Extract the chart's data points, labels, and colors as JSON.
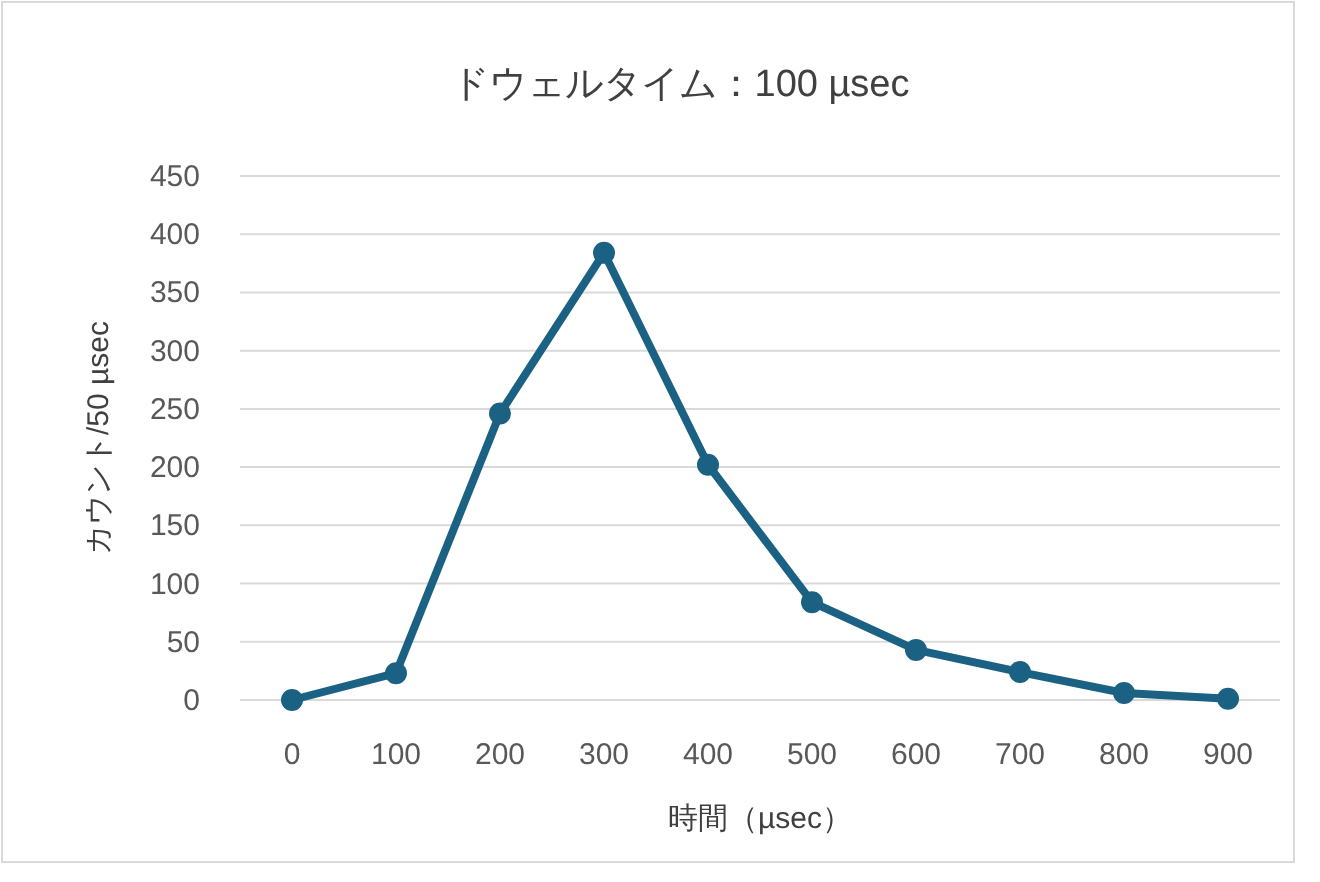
{
  "chart_data": {
    "type": "line",
    "title": "ドウェルタイム：100 µsec",
    "xlabel": "時間（µsec）",
    "ylabel": "カウント/50 µsec",
    "categories": [
      "0",
      "100",
      "200",
      "300",
      "400",
      "500",
      "600",
      "700",
      "800",
      "900"
    ],
    "series": [
      {
        "color": "#1b6184",
        "values": [
          0,
          23,
          246,
          384,
          202,
          84,
          43,
          24,
          6,
          1
        ]
      }
    ],
    "ylim": [
      0,
      450
    ],
    "yticks": [
      0,
      50,
      100,
      150,
      200,
      250,
      300,
      350,
      400,
      450
    ],
    "grid": "y",
    "marker": "circle",
    "line_style": "solid"
  }
}
